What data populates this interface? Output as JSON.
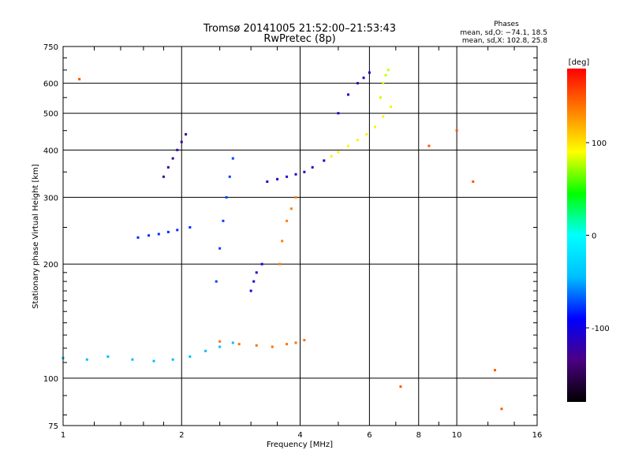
{
  "chart_data": {
    "type": "scatter",
    "title": "Tromsø 20141005 21:52:00–21:53:43",
    "subtitle": "RwPretec (8p)",
    "xlabel": "Frequency [MHz]",
    "ylabel": "Stationary phase Virtual Height [km]",
    "xscale": "log",
    "yscale": "log",
    "xlim": [
      1,
      16
    ],
    "ylim": [
      75,
      750
    ],
    "x_ticks": [
      1,
      2,
      4,
      6,
      8,
      10,
      16
    ],
    "y_ticks": [
      75,
      100,
      200,
      300,
      400,
      500,
      600,
      750
    ],
    "grid": true,
    "stats": {
      "heading": "Phases",
      "o_line": "mean, sd,O: −74.1, 18.5",
      "x_line": "mean, sd,X: 102.8, 25.8"
    },
    "colorbar": {
      "label": "[deg]",
      "range": [
        -180,
        180
      ],
      "ticks": [
        100,
        0,
        -100
      ],
      "colors": [
        "#000000",
        "#4b0082",
        "#0000ff",
        "#00bfff",
        "#00ffff",
        "#00ff00",
        "#ffff00",
        "#ff7f00",
        "#ff0000"
      ]
    },
    "series": [
      {
        "x": [
          1.0,
          1.15,
          1.3,
          1.5,
          1.7,
          1.9,
          2.1,
          2.3,
          2.5,
          2.7
        ],
        "y": [
          113,
          112,
          114,
          112,
          111,
          112,
          114,
          118,
          121,
          124
        ],
        "phase": -45
      },
      {
        "x": [
          2.5,
          2.8,
          3.1,
          3.4,
          3.7,
          3.9,
          4.1
        ],
        "y": [
          125,
          123,
          122,
          121,
          123,
          124,
          126
        ],
        "phase": 140
      },
      {
        "x": [
          1.8,
          1.85,
          1.9,
          1.95,
          2.0,
          2.05
        ],
        "y": [
          340,
          360,
          380,
          400,
          420,
          440
        ],
        "phase": -125
      },
      {
        "x": [
          1.55,
          1.65,
          1.75,
          1.85,
          1.95,
          2.1
        ],
        "y": [
          235,
          238,
          240,
          243,
          246,
          250
        ],
        "phase": -80
      },
      {
        "x": [
          2.45,
          2.5,
          2.55,
          2.6,
          2.65,
          2.7
        ],
        "y": [
          180,
          220,
          260,
          300,
          340,
          380
        ],
        "phase": -75
      },
      {
        "x": [
          3.0,
          3.05,
          3.1,
          3.2
        ],
        "y": [
          170,
          180,
          190,
          200
        ],
        "phase": -100
      },
      {
        "x": [
          3.3,
          3.5,
          3.7,
          3.9,
          4.1,
          4.3,
          4.6
        ],
        "y": [
          330,
          335,
          340,
          345,
          350,
          360,
          375
        ],
        "phase": -110
      },
      {
        "x": [
          3.55,
          3.6,
          3.7,
          3.8,
          3.9
        ],
        "y": [
          200,
          230,
          260,
          280,
          300
        ],
        "phase": 135
      },
      {
        "x": [
          4.8,
          5.0,
          5.3,
          5.6,
          5.9,
          6.2,
          6.5,
          6.8
        ],
        "y": [
          385,
          395,
          410,
          425,
          440,
          460,
          490,
          520
        ],
        "phase": 95
      },
      {
        "x": [
          5.0,
          5.3,
          5.6,
          5.8,
          6.0
        ],
        "y": [
          500,
          560,
          600,
          620,
          640
        ],
        "phase": -110
      },
      {
        "x": [
          6.4,
          6.5,
          6.6,
          6.7
        ],
        "y": [
          550,
          600,
          630,
          650
        ],
        "phase": 80
      },
      {
        "x": [
          1.1,
          7.2,
          8.5,
          10.0,
          11.0,
          12.5,
          13.0
        ],
        "y": [
          615,
          95,
          410,
          450,
          330,
          105,
          83
        ],
        "phase": 150
      }
    ]
  }
}
